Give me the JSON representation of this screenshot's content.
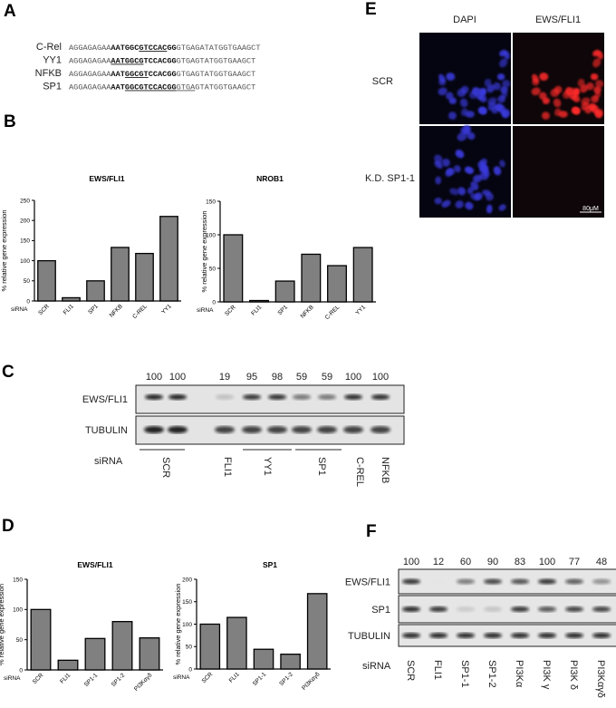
{
  "panels": {
    "a": "A",
    "b": "B",
    "c": "C",
    "d": "D",
    "e": "E",
    "f": "F"
  },
  "panel_a": {
    "rows": [
      {
        "label": "C-Rel",
        "segments": [
          {
            "text": "AGGAGAGAA",
            "bold": false,
            "underline": false
          },
          {
            "text": "AATGGC",
            "bold": true,
            "underline": false
          },
          {
            "text": "GTCCAC",
            "bold": true,
            "underline": true
          },
          {
            "text": "GG",
            "bold": true,
            "underline": false
          },
          {
            "text": "GTGAGATATGGTGAAGCT",
            "bold": false,
            "underline": false
          }
        ]
      },
      {
        "label": "YY1",
        "segments": [
          {
            "text": "AGGAGAGAA",
            "bold": false,
            "underline": false
          },
          {
            "text": "AATGGCG",
            "bold": true,
            "underline": true
          },
          {
            "text": "TCCACGG",
            "bold": true,
            "underline": false
          },
          {
            "text": "GTGAGTATGGTGAAGCT",
            "bold": false,
            "underline": false
          }
        ]
      },
      {
        "label": "NFKB",
        "segments": [
          {
            "text": "AGGAGAGAA",
            "bold": false,
            "underline": false
          },
          {
            "text": "AAT",
            "bold": true,
            "underline": false
          },
          {
            "text": "GGCGT",
            "bold": true,
            "underline": true
          },
          {
            "text": "CCACGG",
            "bold": true,
            "underline": false
          },
          {
            "text": "GTGAGTATGGTGAAGCT",
            "bold": false,
            "underline": false
          }
        ]
      },
      {
        "label": "SP1",
        "segments": [
          {
            "text": "AGGAGAGAA",
            "bold": false,
            "underline": false
          },
          {
            "text": "AAT",
            "bold": true,
            "underline": false
          },
          {
            "text": "GGCGTCCACGG",
            "bold": true,
            "underline": true
          },
          {
            "text": "GTGA",
            "bold": false,
            "underline": true
          },
          {
            "text": "GTATGGTGAAGCT",
            "bold": false,
            "underline": false
          }
        ]
      }
    ]
  },
  "chart_data": [
    {
      "type": "bar",
      "panel": "B",
      "title": "EWS/FLI1",
      "ylabel": "% relative gene expression",
      "xlabel": "siRNA",
      "categories": [
        "SCR",
        "FLI1",
        "SP1",
        "NFKB",
        "C-REL",
        "YY1"
      ],
      "values": [
        100,
        8,
        50,
        133,
        118,
        210
      ],
      "ylim": [
        0,
        250
      ],
      "yticks": [
        "0",
        "50",
        "100",
        "150",
        "200",
        "250"
      ],
      "bar_color": "#808080"
    },
    {
      "type": "bar",
      "panel": "B",
      "title": "NROB1",
      "ylabel": "% relative gene expression",
      "xlabel": "siRNA",
      "categories": [
        "SCR",
        "FLI1",
        "SP1",
        "NFKB",
        "C-REL",
        "YY1"
      ],
      "values": [
        100,
        2,
        31,
        71,
        54,
        81
      ],
      "ylim": [
        0,
        150
      ],
      "yticks": [
        "0",
        "50",
        "100",
        "150"
      ],
      "bar_color": "#808080"
    },
    {
      "type": "bar",
      "panel": "D",
      "title": "EWS/FLI1",
      "ylabel": "% relative gene expression",
      "xlabel": "siRNA",
      "categories": [
        "SCR",
        "FLI1",
        "SP1-1",
        "SP1-2",
        "PI3Kαγδ"
      ],
      "values": [
        100,
        16,
        52,
        80,
        53
      ],
      "ylim": [
        0,
        150
      ],
      "yticks": [
        "0",
        "50",
        "100",
        "150"
      ],
      "bar_color": "#808080"
    },
    {
      "type": "bar",
      "panel": "D",
      "title": "SP1",
      "ylabel": "% relative gene expression",
      "xlabel": "siRNA",
      "categories": [
        "SCR",
        "FLI1",
        "SP1-1",
        "SP1-2",
        "PI3Kαγδ"
      ],
      "values": [
        100,
        115,
        44,
        33,
        168
      ],
      "ylim": [
        0,
        200
      ],
      "yticks": [
        "0",
        "50",
        "100",
        "150",
        "200"
      ],
      "bar_color": "#808080"
    }
  ],
  "panel_c": {
    "rows": [
      "EWS/FLI1",
      "TUBULIN"
    ],
    "quant": [
      "100",
      "100",
      "19",
      "95",
      "98",
      "59",
      "59",
      "100",
      "100"
    ],
    "sirna_label": "siRNA",
    "groups": [
      "SCR",
      "FLI1",
      "YY1",
      "SP1",
      "C-REL",
      "NFKB"
    ]
  },
  "panel_e": {
    "columns": [
      "DAPI",
      "EWS/FLI1"
    ],
    "rows": [
      "SCR",
      "K.D. SP1-1"
    ],
    "scale_bar": "80μM",
    "colors": {
      "dapi": "#3a3adf",
      "ews": "#ff2a2a"
    }
  },
  "panel_f": {
    "rows": [
      "EWS/FLI1",
      "SP1",
      "TUBULIN"
    ],
    "quant": [
      "100",
      "12",
      "60",
      "90",
      "83",
      "100",
      "77",
      "48"
    ],
    "sirna_label": "siRNA",
    "lanes": [
      "SCR",
      "FLI1",
      "SP1-1",
      "SP1-2",
      "PI3Kα",
      "PI3K γ",
      "PI3K δ",
      "PI3Kαγδ"
    ]
  }
}
